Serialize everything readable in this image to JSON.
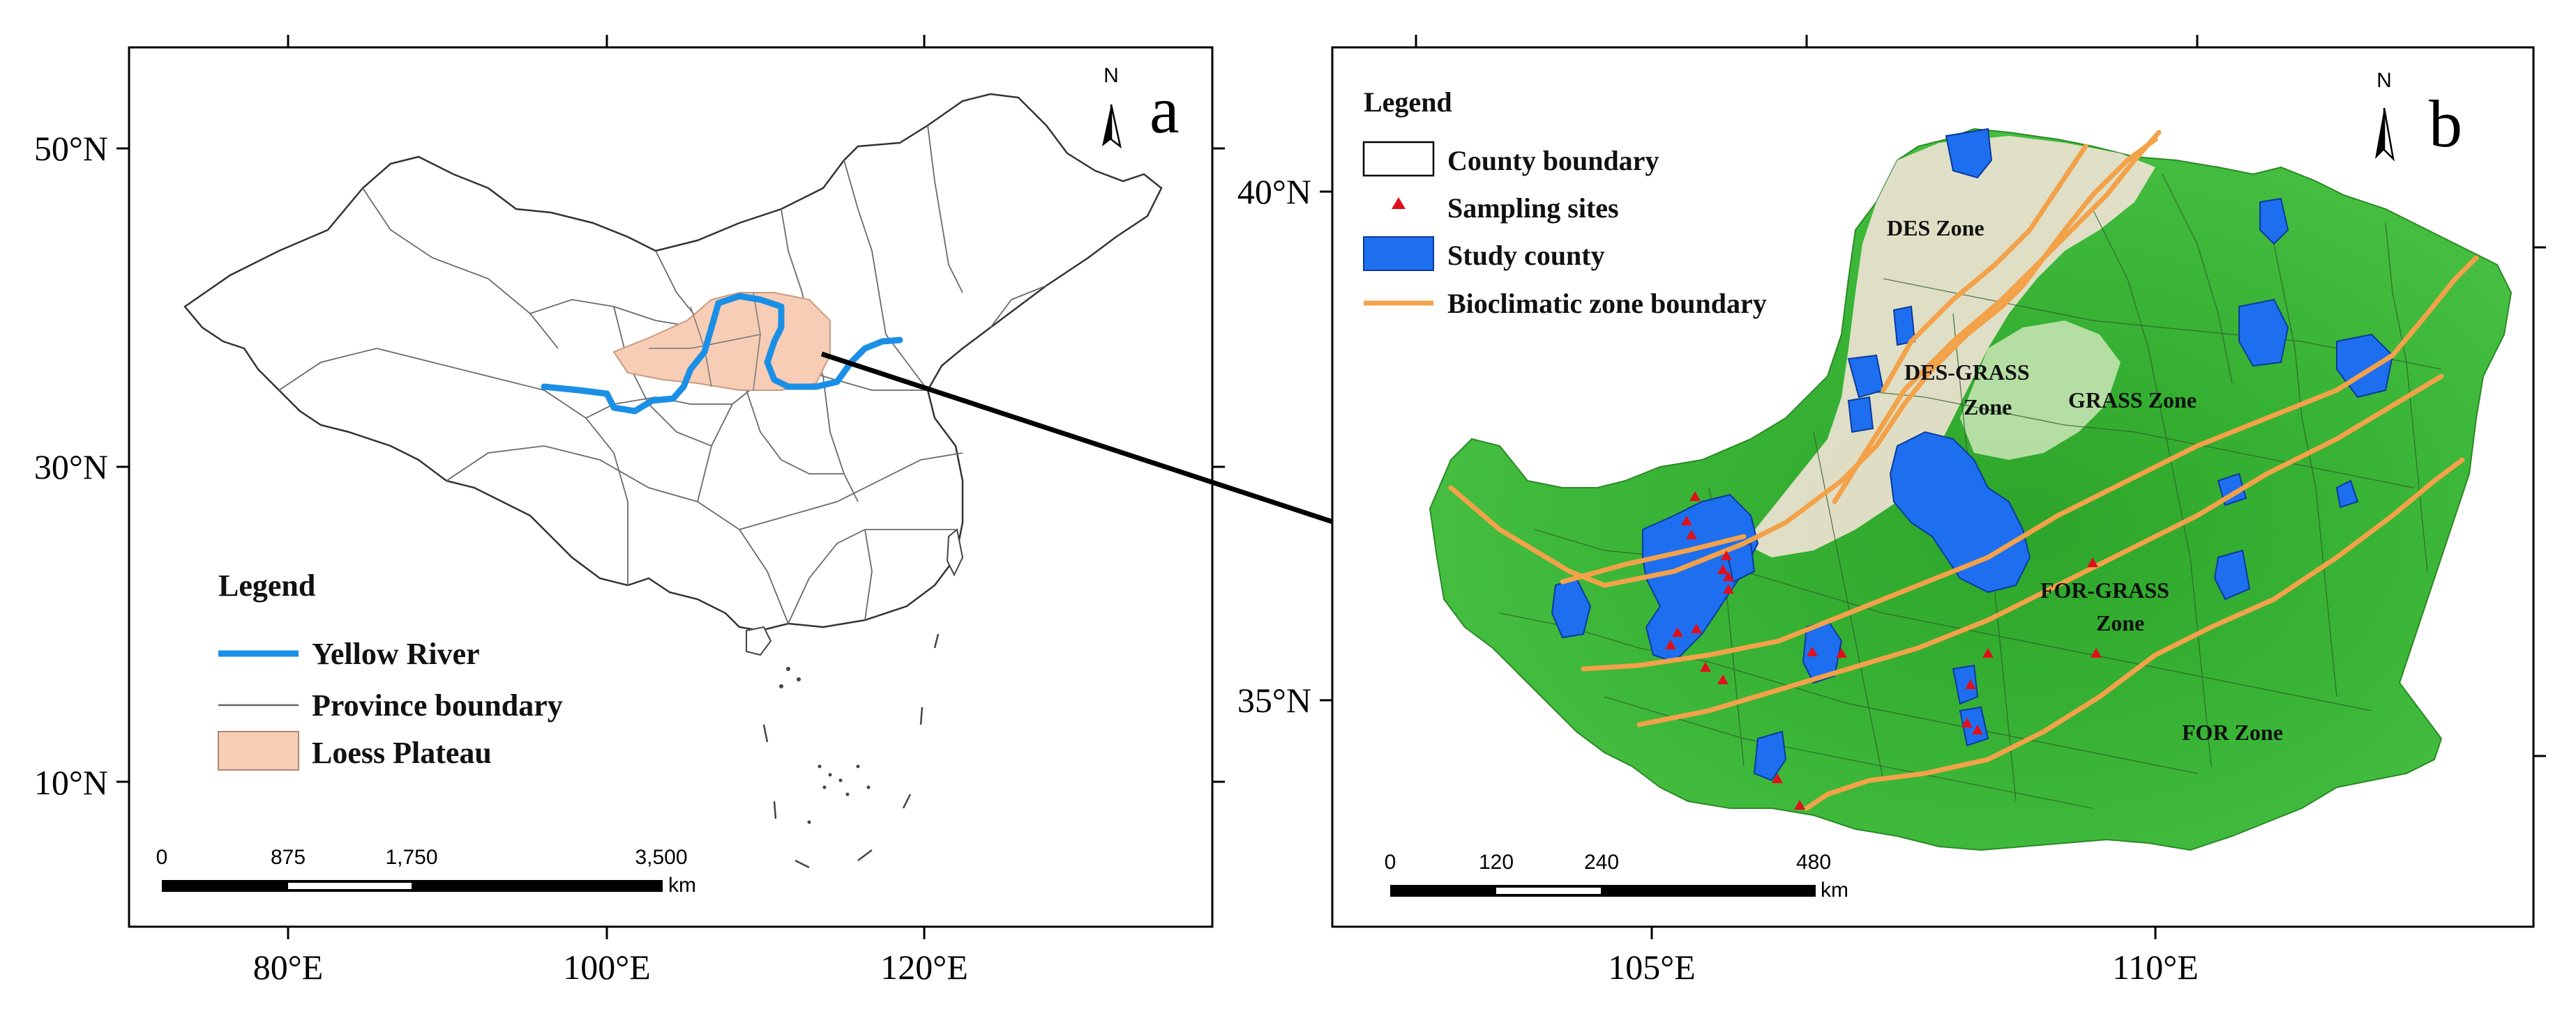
{
  "panel_a": {
    "label": "a",
    "north": "N",
    "lat_labels": [
      "50°N",
      "30°N",
      "10°N"
    ],
    "lon_labels": [
      "80°E",
      "100°E",
      "120°E"
    ],
    "legend": {
      "title": "Legend",
      "items": [
        "Yellow River",
        "Province boundary",
        "Loess Plateau"
      ]
    },
    "scale": {
      "ticks": [
        "0",
        "875",
        "1,750",
        "3,500"
      ],
      "unit": "km"
    },
    "colors": {
      "river": "#1a8fe6",
      "plateau": "#f7cdb6",
      "boundary": "#555555"
    }
  },
  "panel_b": {
    "label": "b",
    "north": "N",
    "lat_labels": [
      "40°N",
      "35°N"
    ],
    "lon_labels": [
      "105°E",
      "110°E"
    ],
    "legend": {
      "title": "Legend",
      "items": [
        "County boundary",
        "Sampling sites",
        "Study county",
        "Bioclimatic zone boundary"
      ]
    },
    "zones": [
      "DES Zone",
      "DES-GRASS",
      "Zone",
      "GRASS Zone",
      "FOR-GRASS",
      "Zone",
      "FOR Zone"
    ],
    "scale": {
      "ticks": [
        "0",
        "120",
        "240",
        "480"
      ],
      "unit": "km"
    },
    "colors": {
      "zone_line": "#f3a24a",
      "study_county": "#1e6ff0",
      "sites": "#e0101a",
      "vegetation": "#35b52e"
    }
  }
}
